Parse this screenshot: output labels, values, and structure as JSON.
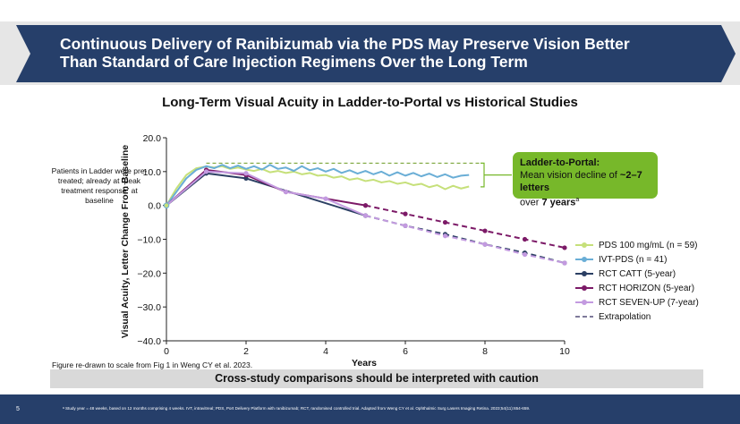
{
  "header": {
    "title_line1": "Continuous Delivery of Ranibizumab via the PDS May Preserve Vision Better",
    "title_line2": "Than Standard of Care Injection Regimens Over the Long Term"
  },
  "side_note": "Patients in Ladder were pre-treated; already at “peak treatment response” at baseline",
  "callout": {
    "title": "Ladder-to-Portal:",
    "text_prefix": "Mean vision decline of ",
    "text_bold": "~2–7 letters",
    "text_mid": "over ",
    "text_bold2": "7 years",
    "superscript": "a"
  },
  "source_note": "Figure re-drawn to scale from Fig 1 in Weng CY et al. 2023.",
  "caution": "Cross-study comparisons should be interpreted with caution",
  "footer": {
    "page_number": "5",
    "footnote": "ᵃ Study year = 48 weeks, based on 12 months comprising 4 weeks. IVT, intravitreal; PDS, Port Delivery Platform with ranibizumab; RCT, randomised controlled trial. Adapted from Weng CY et al. Ophthalmic Surg Lasers Imaging Retina. 2023;54(11):654-659."
  },
  "colors": {
    "navy": "#263f6a",
    "pds100": "#c6e07a",
    "ivt_pds": "#6aaed6",
    "catt": "#2b3f63",
    "horizon": "#7c1a67",
    "sevenup": "#c39ae0",
    "callout": "#77b82a"
  },
  "chart_data": {
    "type": "line",
    "title": "Long-Term Visual Acuity in Ladder-to-Portal vs Historical Studies",
    "xlabel": "Years",
    "ylabel": "Visual Acuity, Letter Change From Baseline",
    "xlim": [
      0,
      10
    ],
    "ylim": [
      -40,
      20
    ],
    "x_ticks": [
      0,
      2,
      4,
      6,
      8,
      10
    ],
    "y_ticks": [
      20,
      10,
      0,
      -10,
      -20,
      -30,
      -40
    ],
    "y_tick_labels": [
      "20.0",
      "10.0",
      "0.0",
      "−10.0",
      "−20.0",
      "−30.0",
      "−40.0"
    ],
    "reference_line_y": 12.5,
    "legend_position": "right",
    "series": [
      {
        "name": "PDS 100 mg/mL (n = 59)",
        "color": "#c6e07a",
        "style": "solid",
        "x": [
          0,
          0.25,
          0.5,
          0.75,
          1.0,
          1.2,
          1.4,
          1.6,
          1.8,
          2.0,
          2.2,
          2.4,
          2.6,
          2.8,
          3.0,
          3.2,
          3.4,
          3.6,
          3.8,
          4.0,
          4.2,
          4.4,
          4.6,
          4.8,
          5.0,
          5.2,
          5.4,
          5.6,
          5.8,
          6.0,
          6.2,
          6.4,
          6.6,
          6.8,
          7.0,
          7.2,
          7.4,
          7.6
        ],
        "y": [
          0,
          5,
          9,
          11,
          11.5,
          11.2,
          11.6,
          10.8,
          11.2,
          10.6,
          10.2,
          10.8,
          9.8,
          10.2,
          9.6,
          10.0,
          9.2,
          9.6,
          8.8,
          9.0,
          8.2,
          8.6,
          7.6,
          8.0,
          7.2,
          7.6,
          6.8,
          7.2,
          6.4,
          6.8,
          6.0,
          6.4,
          5.4,
          6.0,
          4.8,
          5.8,
          5.0,
          5.6
        ]
      },
      {
        "name": "IVT-PDS (n = 41)",
        "color": "#6aaed6",
        "style": "solid",
        "x": [
          0,
          0.25,
          0.5,
          0.75,
          1.0,
          1.2,
          1.4,
          1.6,
          1.8,
          2.0,
          2.2,
          2.4,
          2.6,
          2.8,
          3.0,
          3.2,
          3.4,
          3.6,
          3.8,
          4.0,
          4.2,
          4.4,
          4.6,
          4.8,
          5.0,
          5.2,
          5.4,
          5.6,
          5.8,
          6.0,
          6.2,
          6.4,
          6.6,
          6.8,
          7.0,
          7.2,
          7.4,
          7.6
        ],
        "y": [
          0,
          4,
          8,
          10.5,
          11.6,
          11.0,
          12.0,
          11.0,
          11.8,
          10.8,
          11.6,
          10.6,
          12.0,
          10.8,
          11.2,
          10.2,
          11.6,
          10.4,
          11.0,
          10.0,
          10.8,
          9.6,
          10.4,
          9.4,
          10.2,
          9.2,
          10.0,
          8.8,
          9.8,
          8.8,
          9.6,
          8.6,
          9.4,
          8.4,
          9.2,
          8.2,
          8.8,
          9.0
        ]
      },
      {
        "name": "RCT CATT (5-year)",
        "color": "#2b3f63",
        "style": "solid",
        "x": [
          0,
          1,
          2,
          5
        ],
        "y": [
          0,
          9.5,
          8,
          -3
        ]
      },
      {
        "name": "RCT HORIZON (5-year)",
        "color": "#7c1a67",
        "style": "solid",
        "x": [
          0,
          1,
          2,
          3,
          5
        ],
        "y": [
          0,
          10.5,
          9,
          4,
          0
        ]
      },
      {
        "name": "RCT SEVEN-UP (7-year)",
        "color": "#c39ae0",
        "style": "solid",
        "x": [
          0,
          1,
          2,
          3,
          4,
          5
        ],
        "y": [
          0,
          10,
          9.5,
          4,
          2,
          -3
        ]
      },
      {
        "name": "",
        "color": "#2b3f63",
        "style": "dashed",
        "x": [
          5,
          6,
          7,
          8,
          9,
          10
        ],
        "y": [
          -3,
          -6,
          -8.5,
          -11.5,
          -14,
          -17
        ]
      },
      {
        "name": "",
        "color": "#7c1a67",
        "style": "dashed",
        "x": [
          5,
          6,
          7,
          8,
          9,
          10
        ],
        "y": [
          0,
          -2.5,
          -5,
          -7.5,
          -10,
          -12.5
        ]
      },
      {
        "name": "",
        "color": "#c39ae0",
        "style": "dashed",
        "x": [
          5,
          6,
          7,
          8,
          9,
          10
        ],
        "y": [
          -3,
          -6,
          -9,
          -11.5,
          -14.5,
          -17
        ]
      }
    ],
    "legend": [
      {
        "label": "PDS 100 mg/mL (n = 59)",
        "color": "#c6e07a",
        "style": "marker"
      },
      {
        "label": "IVT-PDS (n = 41)",
        "color": "#6aaed6",
        "style": "marker"
      },
      {
        "label": "RCT CATT (5-year)",
        "color": "#2b3f63",
        "style": "marker"
      },
      {
        "label": "RCT HORIZON (5-year)",
        "color": "#7c1a67",
        "style": "marker"
      },
      {
        "label": "RCT SEVEN-UP (7-year)",
        "color": "#c39ae0",
        "style": "marker"
      },
      {
        "label": "Extrapolation",
        "color": "#7e7a9a",
        "style": "dashed"
      }
    ]
  }
}
